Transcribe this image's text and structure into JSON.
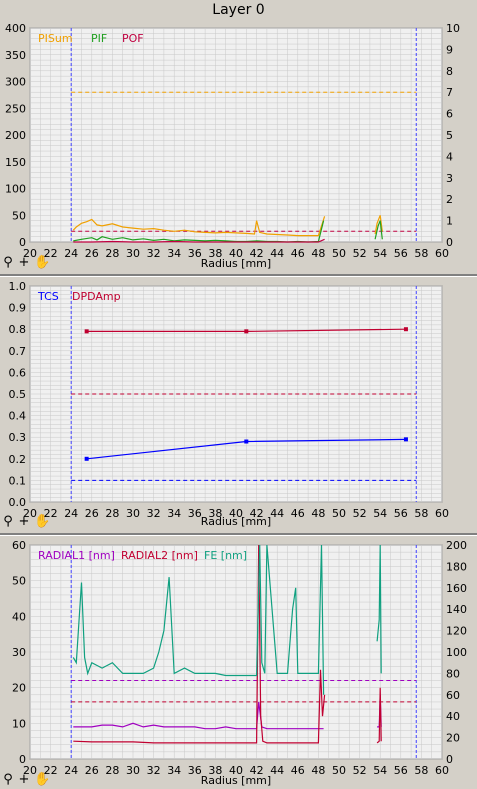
{
  "title": "Layer 0",
  "toolbar": {
    "reset_icon": "⚲",
    "zoom_icon": "+",
    "pan_icon": "✋"
  },
  "colors": {
    "plot_bg": "#f0f0f0",
    "grid": "#c8c8c8",
    "boundary": "#4040ff",
    "pisum": "#f0a000",
    "pif": "#20a020",
    "pof": "#c00040",
    "tcs": "#0000ff",
    "dpdamp": "#c00030",
    "radial1": "#a000c0",
    "radial2": "#c00030",
    "fe": "#10a080"
  },
  "chart_data": [
    {
      "type": "line",
      "xlabel": "Radius [mm]",
      "xlim": [
        20,
        60
      ],
      "xticks": [
        20,
        22,
        24,
        26,
        28,
        30,
        32,
        34,
        36,
        38,
        40,
        42,
        44,
        46,
        48,
        50,
        52,
        54,
        56,
        58,
        60
      ],
      "ylim_left": [
        0,
        400
      ],
      "yticks_left": [
        0,
        50,
        100,
        150,
        200,
        250,
        300,
        350,
        400
      ],
      "ylim_right": [
        0,
        10
      ],
      "yticks_right": [
        0,
        1,
        2,
        3,
        4,
        5,
        6,
        7,
        8,
        9,
        10
      ],
      "boundaries": [
        24,
        57.5
      ],
      "legend": [
        "PISum",
        "PIF",
        "POF"
      ],
      "thresholds": [
        {
          "series": "PISum",
          "y": 280
        },
        {
          "series": "POF",
          "y": 20
        }
      ],
      "series": [
        {
          "name": "PISum",
          "axis": "left",
          "x": [
            24.2,
            24.5,
            25,
            25.5,
            26,
            26.5,
            27,
            28,
            29,
            30,
            31,
            32,
            33,
            34,
            35,
            36,
            37,
            38,
            39,
            40,
            41,
            41.8,
            42,
            42.3,
            43,
            44,
            45,
            46,
            47,
            48,
            48.3,
            48.6
          ],
          "y": [
            22,
            28,
            35,
            38,
            42,
            32,
            30,
            34,
            28,
            26,
            24,
            25,
            22,
            20,
            22,
            19,
            18,
            17,
            18,
            17,
            16,
            15,
            40,
            18,
            15,
            14,
            13,
            12,
            12,
            12,
            30,
            48
          ]
        },
        {
          "name": "PIF",
          "axis": "left",
          "x": [
            24.2,
            25,
            26,
            26.5,
            27,
            28,
            29,
            30,
            31,
            32,
            33,
            34,
            35,
            36,
            37,
            38,
            39,
            40,
            41,
            42,
            43,
            44,
            45,
            46,
            47,
            48,
            48.5
          ],
          "y": [
            2,
            5,
            8,
            4,
            10,
            5,
            8,
            4,
            6,
            3,
            5,
            2,
            4,
            3,
            2,
            3,
            2,
            1,
            1,
            2,
            1,
            1,
            0,
            1,
            0,
            1,
            40
          ]
        },
        {
          "name": "POF",
          "axis": "left",
          "x": [
            24.2,
            26,
            28,
            30,
            32,
            34,
            36,
            38,
            40,
            42,
            44,
            46,
            48,
            48.6
          ],
          "y": [
            0,
            0,
            1,
            0,
            0,
            1,
            0,
            0,
            0,
            0,
            0,
            0,
            0,
            5
          ]
        },
        {
          "name": "PISum (segment 2)",
          "axis": "left",
          "x": [
            53.5,
            53.7,
            54,
            54.2
          ],
          "y": [
            15,
            35,
            50,
            20
          ]
        },
        {
          "name": "PIF (segment 2)",
          "axis": "left",
          "x": [
            53.5,
            53.8,
            54,
            54.2
          ],
          "y": [
            5,
            30,
            40,
            5
          ]
        }
      ]
    },
    {
      "type": "line",
      "xlabel": "Radius [mm]",
      "xlim": [
        20,
        60
      ],
      "xticks": [
        20,
        22,
        24,
        26,
        28,
        30,
        32,
        34,
        36,
        38,
        40,
        42,
        44,
        46,
        48,
        50,
        52,
        54,
        56,
        58,
        60
      ],
      "ylim": [
        0,
        1.0
      ],
      "yticks": [
        0,
        0.1,
        0.2,
        0.3,
        0.4,
        0.5,
        0.6,
        0.7,
        0.8,
        0.9,
        1.0
      ],
      "boundaries": [
        24,
        57.5
      ],
      "legend": [
        "TCS",
        "DPDAmp"
      ],
      "thresholds": [
        {
          "series": "DPDAmp",
          "y": 0.5
        },
        {
          "series": "TCS",
          "y": 0.1
        }
      ],
      "series": [
        {
          "name": "TCS",
          "x": [
            25.5,
            41,
            56.5
          ],
          "y": [
            0.2,
            0.28,
            0.29
          ]
        },
        {
          "name": "DPDAmp",
          "x": [
            25.5,
            41,
            56.5
          ],
          "y": [
            0.79,
            0.79,
            0.8
          ]
        }
      ]
    },
    {
      "type": "line",
      "xlabel": "Radius [mm]",
      "xlim": [
        20,
        60
      ],
      "xticks": [
        20,
        22,
        24,
        26,
        28,
        30,
        32,
        34,
        36,
        38,
        40,
        42,
        44,
        46,
        48,
        50,
        52,
        54,
        56,
        58,
        60
      ],
      "ylim_left": [
        0,
        60
      ],
      "yticks_left": [
        0,
        10,
        20,
        30,
        40,
        50,
        60
      ],
      "ylim_right": [
        0,
        200
      ],
      "yticks_right": [
        0,
        20,
        40,
        60,
        80,
        100,
        120,
        140,
        160,
        180,
        200
      ],
      "boundaries": [
        24,
        57.5
      ],
      "legend": [
        "RADIAL1 [nm]",
        "RADIAL2 [nm]",
        "FE [nm]"
      ],
      "thresholds": [
        {
          "series": "RADIAL1 [nm]",
          "y": 22
        },
        {
          "series": "RADIAL2 [nm]",
          "y": 16
        }
      ],
      "series": [
        {
          "name": "RADIAL1 [nm]",
          "axis": "left",
          "x": [
            24.2,
            25,
            26,
            27,
            28,
            29,
            30,
            31,
            32,
            33,
            34,
            35,
            36,
            37,
            38,
            39,
            40,
            41,
            42,
            42.2,
            42.5,
            43,
            44,
            45,
            46,
            47,
            48,
            48.5
          ],
          "y": [
            9,
            9,
            9,
            9.5,
            9.5,
            9,
            10,
            9,
            9.5,
            9,
            9,
            9,
            9,
            8.5,
            8.5,
            9,
            8.5,
            8.5,
            8.5,
            16,
            9,
            8.5,
            8.5,
            8.5,
            8.5,
            8.5,
            8.5,
            8.5
          ]
        },
        {
          "name": "RADIAL2 [nm]",
          "axis": "left",
          "x": [
            24.2,
            26,
            28,
            30,
            32,
            34,
            36,
            38,
            40,
            42,
            42.2,
            42.4,
            42.6,
            43,
            44,
            46,
            48,
            48.2,
            48.4,
            48.6
          ],
          "y": [
            5,
            4.8,
            4.8,
            4.8,
            4.5,
            4.5,
            4.5,
            4.5,
            4.5,
            4.5,
            60,
            12,
            5,
            4.5,
            4.5,
            4.5,
            4.5,
            25,
            12,
            18
          ]
        },
        {
          "name": "FE [nm]",
          "axis": "right",
          "x": [
            24.2,
            24.5,
            25,
            25.3,
            25.6,
            26,
            27,
            28,
            29,
            30,
            31,
            32,
            32.5,
            33,
            33.5,
            34,
            35,
            36,
            37,
            38,
            39,
            40,
            41,
            42,
            42.3,
            42.5,
            42.8,
            43,
            44,
            45,
            45.5,
            45.8,
            46,
            47,
            48,
            48.3,
            48.5
          ],
          "y": [
            95,
            90,
            165,
            95,
            80,
            90,
            85,
            90,
            80,
            80,
            80,
            85,
            100,
            120,
            170,
            80,
            85,
            80,
            80,
            80,
            78,
            78,
            78,
            78,
            200,
            90,
            80,
            200,
            80,
            80,
            140,
            160,
            80,
            80,
            80,
            200,
            60
          ]
        },
        {
          "name": "FE [nm] (segment 2)",
          "axis": "right",
          "x": [
            53.7,
            53.9,
            54,
            54.1
          ],
          "y": [
            110,
            130,
            200,
            80
          ]
        },
        {
          "name": "RADIAL1 [nm] (segment 2)",
          "axis": "left",
          "x": [
            53.7,
            53.9,
            54,
            54.1
          ],
          "y": [
            9,
            9,
            18,
            9
          ]
        },
        {
          "name": "RADIAL2 [nm] (segment 2)",
          "axis": "left",
          "x": [
            53.7,
            53.9,
            54,
            54.1
          ],
          "y": [
            4.5,
            5,
            20,
            5
          ]
        }
      ]
    }
  ]
}
